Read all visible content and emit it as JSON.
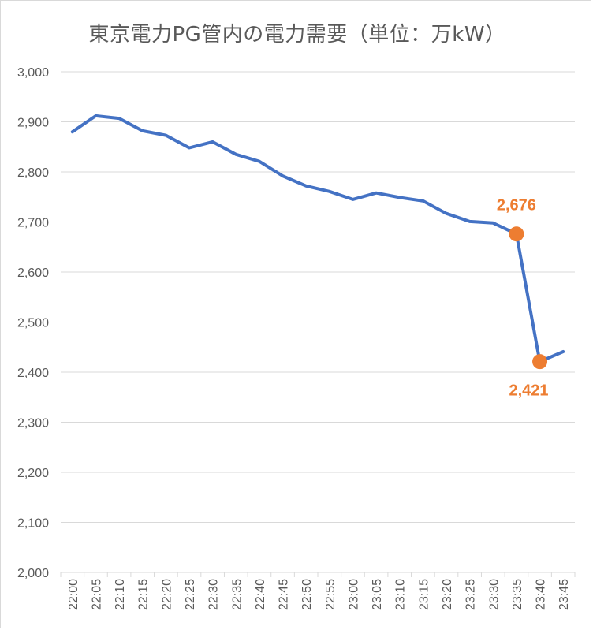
{
  "chart_data": {
    "type": "line",
    "title": "東京電力PG管内の電力需要（単位：万kW）",
    "categories": [
      "22:00",
      "22:05",
      "22:10",
      "22:15",
      "22:20",
      "22:25",
      "22:30",
      "22:35",
      "22:40",
      "22:45",
      "22:50",
      "22:55",
      "23:00",
      "23:05",
      "23:10",
      "23:15",
      "23:20",
      "23:25",
      "23:30",
      "23:35",
      "23:40",
      "23:45"
    ],
    "series": [
      {
        "values": [
          2880,
          2912,
          2907,
          2882,
          2873,
          2848,
          2860,
          2835,
          2821,
          2792,
          2772,
          2761,
          2745,
          2758,
          2749,
          2742,
          2717,
          2701,
          2698,
          2676,
          2421,
          2441
        ]
      }
    ],
    "ylim": [
      2000,
      3000
    ],
    "yticks": [
      "2,000",
      "2,100",
      "2,200",
      "2,300",
      "2,400",
      "2,500",
      "2,600",
      "2,700",
      "2,800",
      "2,900",
      "3,000"
    ],
    "grid": true,
    "colors": {
      "line": "#4472c4",
      "marker": "#ed7d31",
      "grid": "#d9d9d9",
      "text": "#595959"
    },
    "annotations": [
      {
        "category_index": 19,
        "value": 2676,
        "text": "2,676",
        "position": "above"
      },
      {
        "category_index": 20,
        "value": 2421,
        "text": "2,421",
        "position": "below"
      }
    ]
  }
}
